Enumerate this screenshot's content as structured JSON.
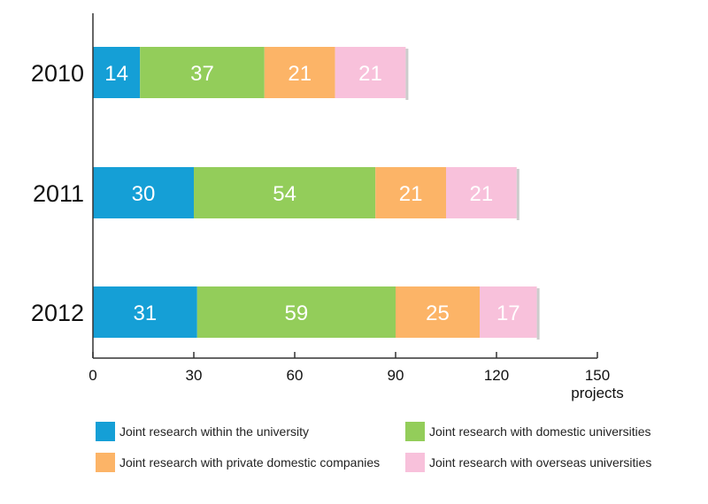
{
  "chart_data": {
    "type": "bar",
    "orientation": "horizontal",
    "stacked": true,
    "categories": [
      "2010",
      "2011",
      "2012"
    ],
    "series": [
      {
        "name": "Joint research within the university",
        "values": [
          14,
          30,
          31
        ],
        "color": "#159fd6"
      },
      {
        "name": "Joint research with domestic universities",
        "values": [
          37,
          54,
          59
        ],
        "color": "#93cd5a"
      },
      {
        "name": "Joint research with private domestic companies",
        "values": [
          21,
          21,
          25
        ],
        "color": "#fcb467"
      },
      {
        "name": "Joint research with overseas universities",
        "values": [
          21,
          21,
          17
        ],
        "color": "#f8c1db"
      }
    ],
    "xticks": [
      0,
      30,
      60,
      90,
      120,
      150
    ],
    "xlim": [
      0,
      150
    ],
    "xlabel": "projects",
    "ylabel": "",
    "title": "",
    "grid": false,
    "legend_position": "bottom"
  }
}
